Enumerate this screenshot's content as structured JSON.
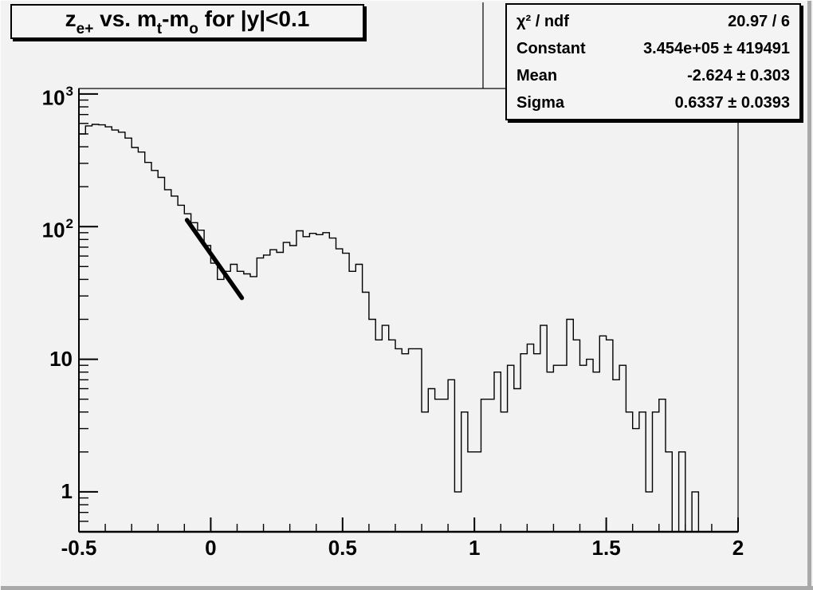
{
  "window": {
    "background": "#f2f2f2",
    "bevel_color": "#a9a9a9"
  },
  "title": {
    "text": "z_e+ vs. m_t-m_o for |y|<0.1",
    "segments": [
      {
        "t": "z",
        "sub": "e+"
      },
      {
        "t": " vs. m",
        "sub": "t"
      },
      {
        "t": "-m",
        "sub": "o"
      },
      {
        "t": " for |y|<0.1",
        "sub": ""
      }
    ]
  },
  "stats": {
    "rows": [
      {
        "label": "χ² / ndf",
        "value": "20.97 / 6"
      },
      {
        "label": "Constant",
        "value": "3.454e+05 ± 419491"
      },
      {
        "label": "Mean",
        "value": "-2.624 ± 0.303"
      },
      {
        "label": "Sigma",
        "value": "0.6337 ± 0.0393"
      }
    ]
  },
  "chart_data": {
    "type": "bar",
    "subtype": "step-histogram-logy",
    "title": "z_e+ vs. m_t-m_o for |y|<0.1",
    "xlabel": "",
    "ylabel": "",
    "xlim": [
      -0.5,
      2.0
    ],
    "ylim": [
      0.5,
      1100
    ],
    "yscale": "log",
    "grid": false,
    "legend_position": "none",
    "bin_start": -0.5,
    "bin_width": 0.025,
    "values": [
      500,
      575,
      590,
      585,
      565,
      535,
      515,
      465,
      395,
      365,
      305,
      265,
      235,
      190,
      170,
      145,
      125,
      107,
      94,
      72,
      53,
      40,
      46,
      52,
      46,
      44,
      42,
      58,
      61,
      67,
      64,
      76,
      72,
      93,
      84,
      89,
      87,
      90,
      82,
      68,
      63,
      46,
      52,
      32,
      20,
      14,
      18,
      14,
      12,
      11,
      12,
      12,
      4,
      6,
      5,
      5,
      7,
      1,
      4,
      2,
      2,
      5,
      5,
      8,
      4,
      9,
      6,
      11,
      13,
      11,
      18,
      8,
      9,
      9,
      20,
      14,
      9,
      10,
      8,
      15,
      14,
      7,
      9,
      4,
      3,
      4,
      1,
      4,
      5,
      2,
      0,
      2,
      0,
      1,
      0,
      0,
      0,
      0,
      0,
      0
    ],
    "xticks": {
      "major": [
        -0.5,
        0,
        0.5,
        1,
        1.5,
        2
      ],
      "labels": [
        "-0.5",
        "0",
        "0.5",
        "1",
        "1.5",
        "2"
      ],
      "minor_step": 0.1
    },
    "yticks": [
      {
        "base": "10",
        "exp": "3",
        "value": 1000
      },
      {
        "base": "10",
        "exp": "2",
        "value": 100
      },
      {
        "base": "10",
        "exp": "",
        "value": 10
      },
      {
        "base": "1",
        "exp": "",
        "value": 1
      }
    ],
    "fit_line": {
      "x1": -0.09,
      "y1": 112,
      "x2": 0.118,
      "y2": 29
    },
    "colors": {
      "histogram_line": "#000000",
      "fit_line": "#000000",
      "frame": "#000000"
    }
  }
}
